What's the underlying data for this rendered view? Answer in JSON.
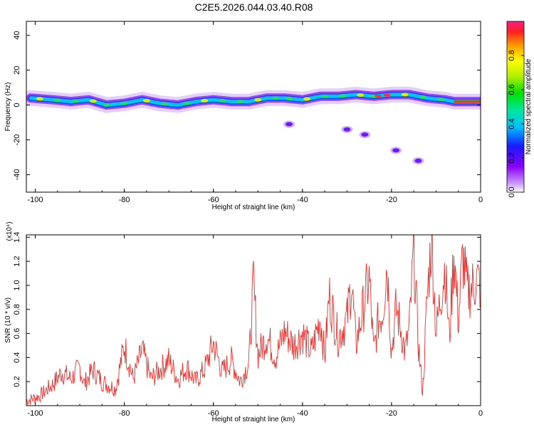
{
  "title": "C2E5.2026.044.03.40.R08",
  "chart_data": [
    {
      "type": "heatmap",
      "xlabel": "Height of straight line (km)",
      "ylabel": "Frequency (Hz)",
      "xlim": [
        -102,
        0
      ],
      "ylim": [
        -50,
        48
      ],
      "x_ticks": [
        -100,
        -80,
        -60,
        -40,
        -20,
        0
      ],
      "y_ticks": [
        40,
        20,
        0,
        -20,
        -40
      ],
      "colorbar": {
        "label": "Normalized spectral amplitude",
        "range": [
          0,
          1
        ],
        "ticks": [
          0.0,
          0.2,
          0.4,
          0.6,
          0.8
        ]
      },
      "ridge": {
        "x": [
          -101,
          -96,
          -92,
          -88,
          -84,
          -80,
          -76,
          -72,
          -68,
          -64,
          -60,
          -56,
          -52,
          -48,
          -44,
          -40,
          -36,
          -32,
          -28,
          -24,
          -20,
          -16,
          -12,
          -8,
          -6,
          0
        ],
        "frequency": [
          4,
          3,
          2,
          3,
          0,
          1,
          3,
          1,
          0,
          2,
          3,
          2,
          2,
          4,
          4,
          3,
          5,
          5,
          6,
          5,
          6,
          6,
          4,
          3,
          2,
          2
        ]
      },
      "blobs": [
        {
          "x": -43,
          "frequency": -11
        },
        {
          "x": -30,
          "frequency": -14
        },
        {
          "x": -26,
          "frequency": -17
        },
        {
          "x": -14,
          "frequency": -32
        },
        {
          "x": -19,
          "frequency": -26
        }
      ]
    },
    {
      "type": "line",
      "xlabel": "Height of straight line (km)",
      "ylabel": "SNR (10 * v/v)",
      "y_multiplier": "(x10⁴)",
      "xlim": [
        -102,
        0
      ],
      "ylim": [
        0,
        1.42
      ],
      "x_ticks": [
        -100,
        -80,
        -60,
        -40,
        -20,
        0
      ],
      "y_ticks": [
        0.2,
        0.4,
        0.6,
        0.8,
        1.0,
        1.2,
        1.4
      ],
      "series": [
        {
          "color": "#e8332f",
          "x": [
            -102,
            -99,
            -96,
            -94,
            -92,
            -90,
            -89,
            -87,
            -85,
            -82,
            -80,
            -78,
            -76,
            -74,
            -72,
            -70,
            -68,
            -66,
            -64,
            -62,
            -60,
            -58,
            -56,
            -54,
            -52,
            -51,
            -50,
            -48,
            -46,
            -44,
            -42,
            -40,
            -38,
            -36,
            -35,
            -34,
            -32,
            -30,
            -29,
            -28,
            -26,
            -25,
            -24,
            -23,
            -22,
            -21,
            -20,
            -19,
            -18,
            -17,
            -16,
            -15,
            -14,
            -13,
            -12,
            -11,
            -10,
            -9,
            -8,
            -7,
            -6,
            -5,
            -4,
            -3,
            -2,
            -1,
            0
          ],
          "values": [
            0.04,
            0.08,
            0.18,
            0.28,
            0.22,
            0.32,
            0.18,
            0.3,
            0.2,
            0.14,
            0.5,
            0.22,
            0.46,
            0.22,
            0.3,
            0.38,
            0.22,
            0.32,
            0.2,
            0.3,
            0.52,
            0.28,
            0.38,
            0.2,
            0.36,
            1.02,
            0.42,
            0.58,
            0.4,
            0.62,
            0.5,
            0.6,
            0.44,
            0.74,
            0.4,
            0.92,
            0.56,
            0.72,
            1.04,
            0.5,
            0.88,
            1.06,
            0.44,
            0.7,
            0.78,
            1.2,
            0.44,
            0.8,
            0.66,
            0.44,
            0.64,
            1.3,
            0.52,
            0.1,
            0.9,
            1.42,
            0.6,
            0.9,
            1.16,
            0.55,
            1.3,
            0.7,
            1.25,
            0.95,
            0.98,
            1.05,
            1.0
          ]
        }
      ]
    }
  ]
}
